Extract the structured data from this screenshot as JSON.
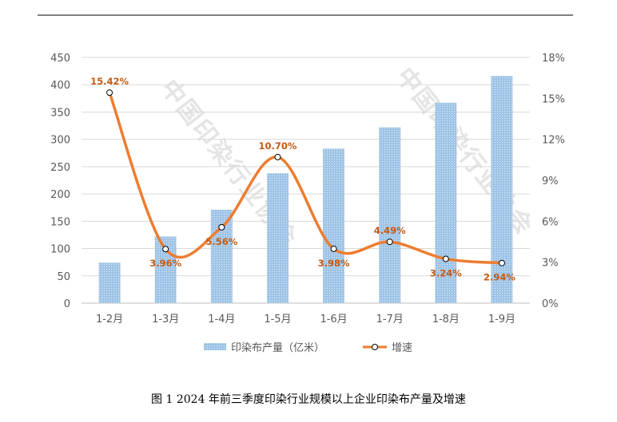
{
  "chart_data": {
    "type": "bar+line",
    "title": "图 1 2024 年前三季度印染行业规模以上企业印染布产量及增速",
    "categories": [
      "1-2月",
      "1-3月",
      "1-4月",
      "1-5月",
      "1-6月",
      "1-7月",
      "1-8月",
      "1-9月"
    ],
    "series": [
      {
        "name": "印染布产量（亿米）",
        "type": "bar",
        "axis": "left",
        "color": "#9dc3e6",
        "values": [
          74,
          122,
          171,
          238,
          283,
          322,
          367,
          416
        ]
      },
      {
        "name": "增速",
        "type": "line",
        "axis": "right",
        "color": "#ed7d31",
        "smooth": true,
        "values": [
          15.42,
          3.96,
          5.56,
          10.7,
          3.98,
          4.49,
          3.24,
          2.94
        ],
        "labels": [
          "15.42%",
          "3.96%",
          "5.56%",
          "10.70%",
          "3.98%",
          "4.49%",
          "3.24%",
          "2.94%"
        ]
      }
    ],
    "ylim_left": [
      0,
      450
    ],
    "yticks_left": [
      "0",
      "50",
      "100",
      "150",
      "200",
      "250",
      "300",
      "350",
      "400",
      "450"
    ],
    "ylim_right": [
      0,
      18
    ],
    "yticks_right": [
      "0%",
      "3%",
      "6%",
      "9%",
      "12%",
      "15%",
      "18%"
    ],
    "grid": true,
    "legend": "bottom",
    "watermark": "中国印染行业协会"
  }
}
